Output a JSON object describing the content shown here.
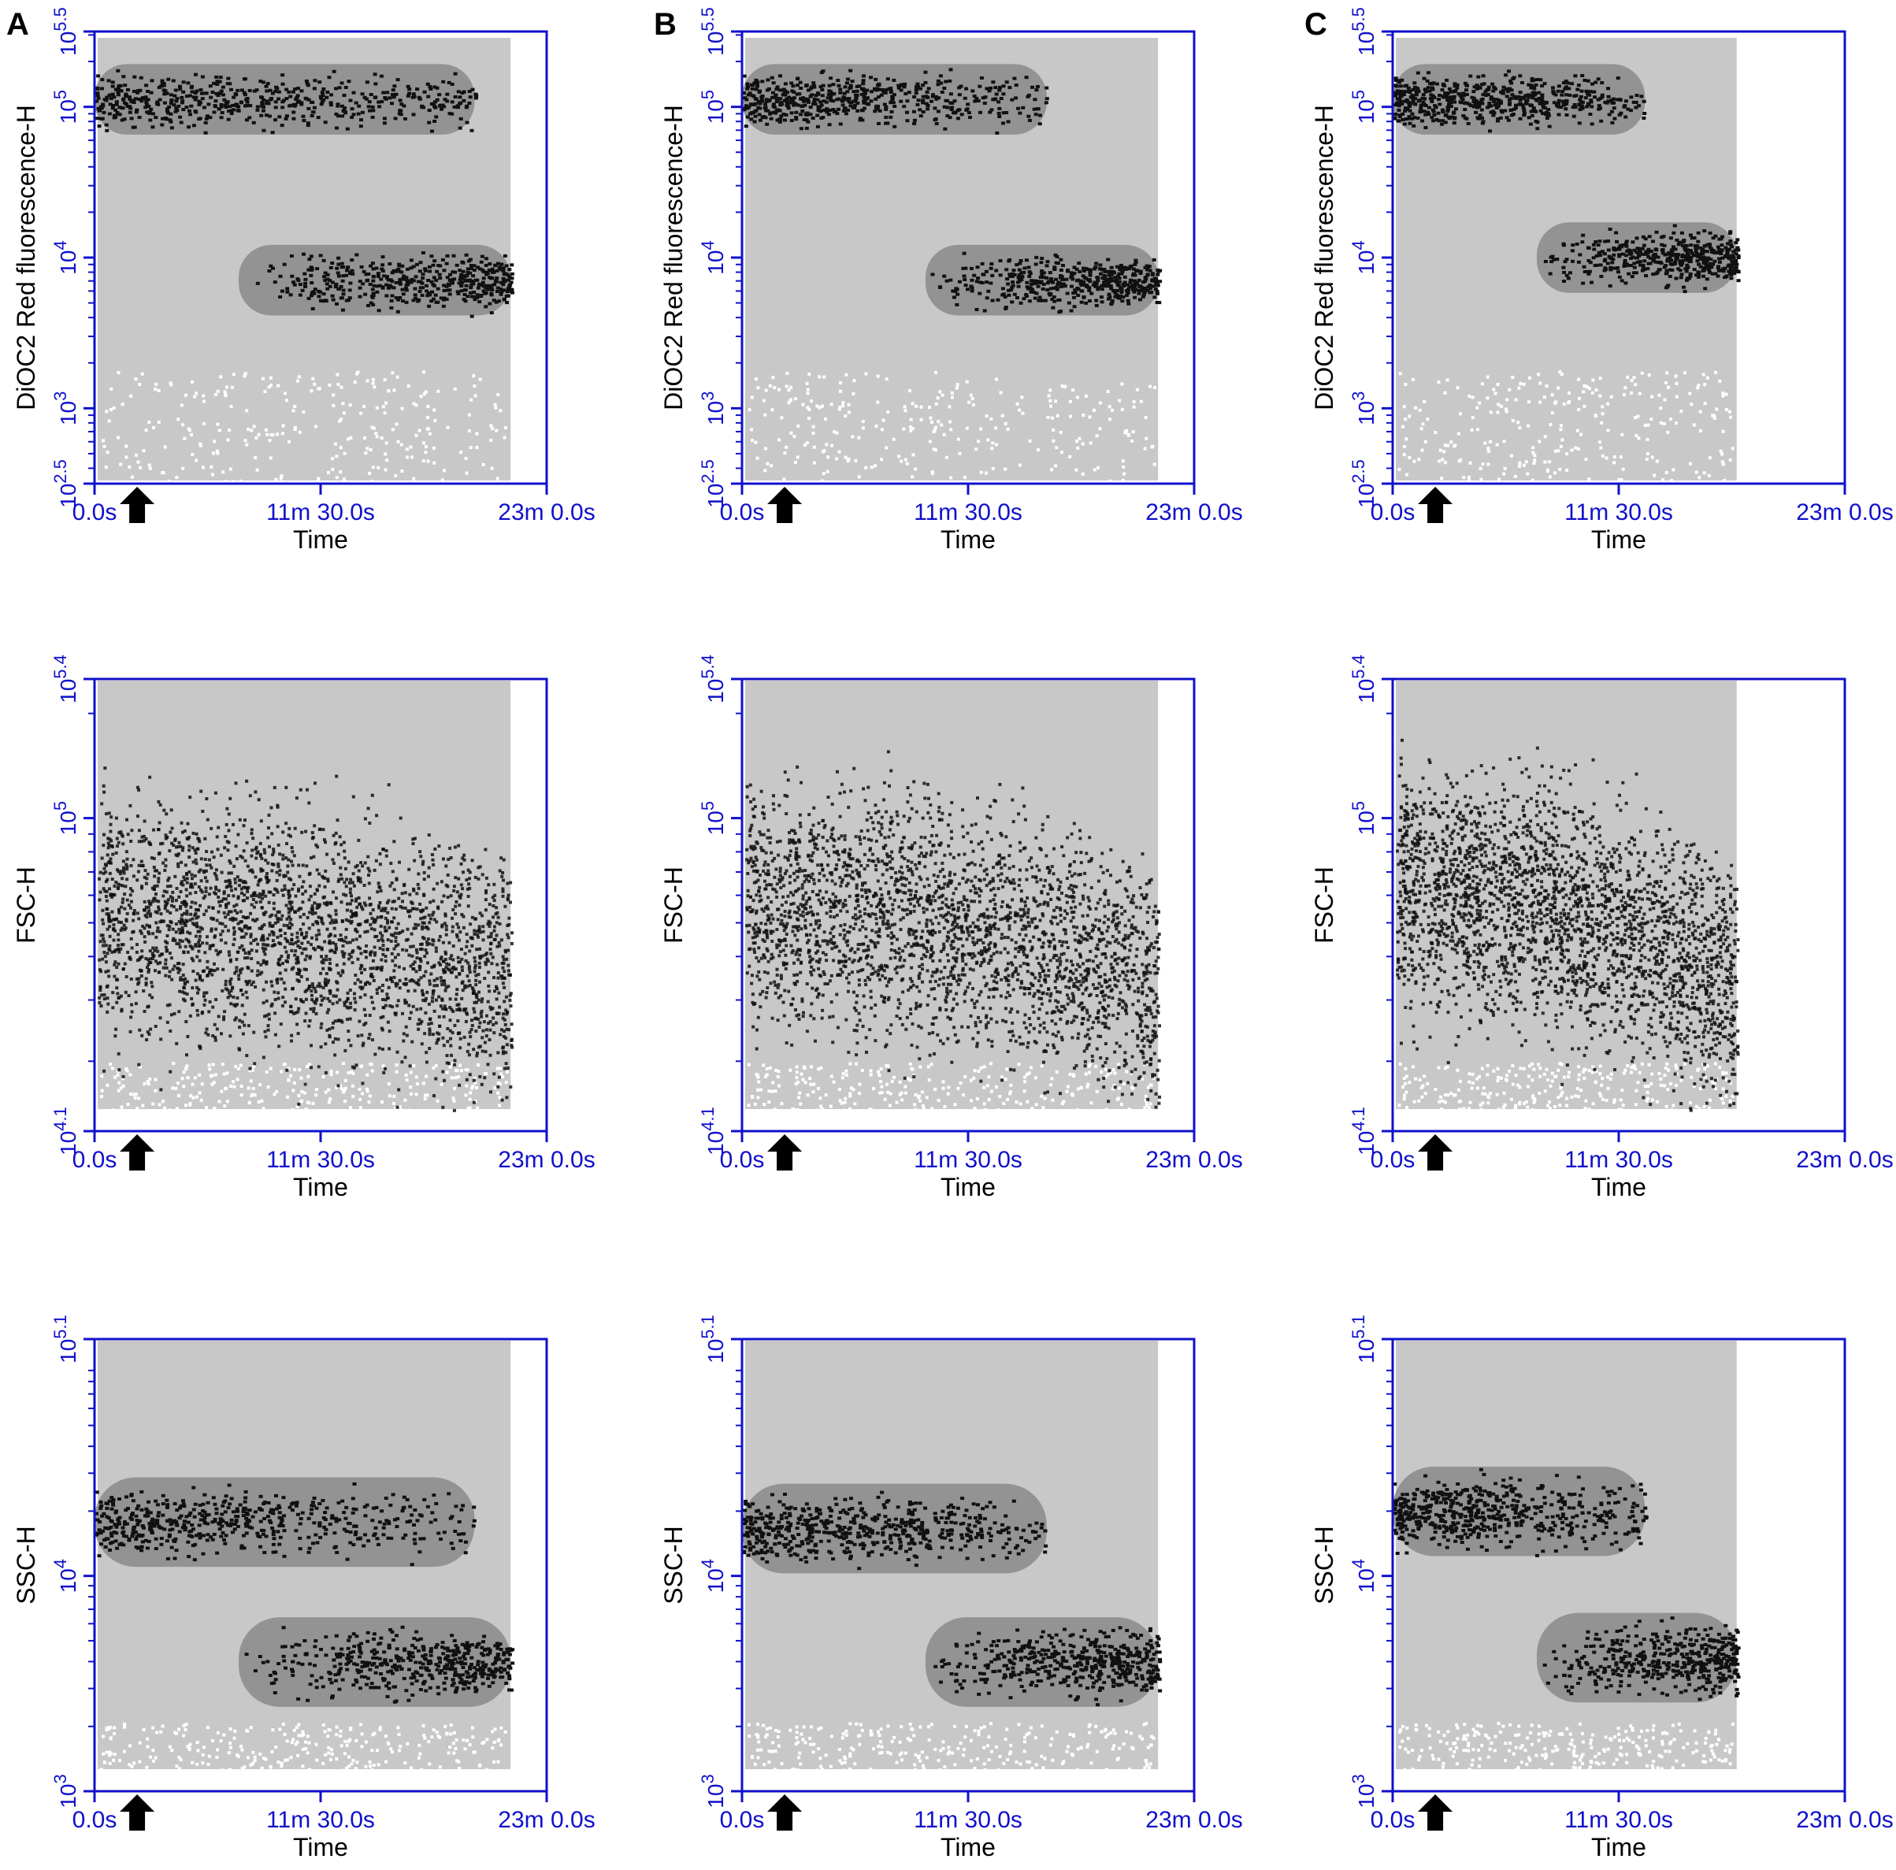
{
  "figure": {
    "panel_letters": [
      "A",
      "B",
      "C"
    ],
    "arrow_marker": "up-arrow-icon"
  },
  "colors": {
    "axis": "#1010cc",
    "background_density": "#c8c8c8",
    "low_density": "#ffffff",
    "mid_density": "#8a8a8a",
    "high_density": "#101010"
  },
  "chart_data": [
    {
      "type": "heatmap",
      "panel": "A",
      "xlabel": "Time",
      "ylabel": "DiOC2 Red fluorescence-H",
      "x_ticks": [
        "0.0s",
        "11m 30.0s",
        "23m 0.0s"
      ],
      "xlim_seconds": [
        0,
        1380
      ],
      "data_extent_seconds": [
        0,
        1270
      ],
      "y_scale": "log10",
      "ylim_log10": [
        2.5,
        5.5
      ],
      "y_ticks_log10": [
        2.5,
        3,
        4,
        5,
        5.5
      ],
      "arrow_time_seconds": 130,
      "populations": [
        {
          "t_start_s": 0,
          "t_end_s": 1160,
          "center_log10": 5.05,
          "intensity": "high then fading"
        },
        {
          "t_start_s": 440,
          "t_end_s": 1270,
          "center_log10": 3.85,
          "intensity": "rising"
        }
      ]
    },
    {
      "type": "heatmap",
      "panel": "B",
      "xlabel": "Time",
      "ylabel": "DiOC2 Red fluorescence-H",
      "x_ticks": [
        "0.0s",
        "11m 30.0s",
        "23m 0.0s"
      ],
      "xlim_seconds": [
        0,
        1380
      ],
      "data_extent_seconds": [
        0,
        1270
      ],
      "y_scale": "log10",
      "ylim_log10": [
        2.5,
        5.5
      ],
      "y_ticks_log10": [
        2.5,
        3,
        4,
        5,
        5.5
      ],
      "arrow_time_seconds": 130,
      "populations": [
        {
          "t_start_s": 0,
          "t_end_s": 930,
          "center_log10": 5.05,
          "intensity": "high then fading"
        },
        {
          "t_start_s": 560,
          "t_end_s": 1270,
          "center_log10": 3.85,
          "intensity": "rising"
        }
      ]
    },
    {
      "type": "heatmap",
      "panel": "C",
      "xlabel": "Time",
      "ylabel": "DiOC2 Red fluorescence-H",
      "x_ticks": [
        "0.0s",
        "11m 30.0s",
        "23m 0.0s"
      ],
      "xlim_seconds": [
        0,
        1380
      ],
      "data_extent_seconds": [
        0,
        1050
      ],
      "y_scale": "log10",
      "ylim_log10": [
        2.5,
        5.5
      ],
      "y_ticks_log10": [
        2.5,
        3,
        4,
        5,
        5.5
      ],
      "arrow_time_seconds": 130,
      "populations": [
        {
          "t_start_s": 0,
          "t_end_s": 770,
          "center_log10": 5.05,
          "intensity": "high then fading"
        },
        {
          "t_start_s": 440,
          "t_end_s": 1050,
          "center_log10": 4.0,
          "intensity": "rising"
        }
      ]
    },
    {
      "type": "heatmap",
      "panel": "A",
      "xlabel": "Time",
      "ylabel": "FSC-H",
      "x_ticks": [
        "0.0s",
        "11m 30.0s",
        "23m 0.0s"
      ],
      "xlim_seconds": [
        0,
        1380
      ],
      "data_extent_seconds": [
        0,
        1270
      ],
      "y_scale": "log10",
      "ylim_log10": [
        4.1,
        5.4
      ],
      "y_ticks_log10": [
        4.1,
        5,
        5.4
      ],
      "arrow_time_seconds": 130,
      "trend": {
        "start_center_log10": 4.72,
        "end_center_log10": 4.52
      }
    },
    {
      "type": "heatmap",
      "panel": "B",
      "xlabel": "Time",
      "ylabel": "FSC-H",
      "x_ticks": [
        "0.0s",
        "11m 30.0s",
        "23m 0.0s"
      ],
      "xlim_seconds": [
        0,
        1380
      ],
      "data_extent_seconds": [
        0,
        1270
      ],
      "y_scale": "log10",
      "ylim_log10": [
        4.1,
        5.4
      ],
      "y_ticks_log10": [
        4.1,
        5,
        5.4
      ],
      "arrow_time_seconds": 130,
      "trend": {
        "start_center_log10": 4.75,
        "end_center_log10": 4.5
      }
    },
    {
      "type": "heatmap",
      "panel": "C",
      "xlabel": "Time",
      "ylabel": "FSC-H",
      "x_ticks": [
        "0.0s",
        "11m 30.0s",
        "23m 0.0s"
      ],
      "xlim_seconds": [
        0,
        1380
      ],
      "data_extent_seconds": [
        0,
        1050
      ],
      "y_scale": "log10",
      "ylim_log10": [
        4.1,
        5.4
      ],
      "y_ticks_log10": [
        4.1,
        5,
        5.4
      ],
      "arrow_time_seconds": 130,
      "trend": {
        "start_center_log10": 4.8,
        "end_center_log10": 4.5
      }
    },
    {
      "type": "heatmap",
      "panel": "A",
      "xlabel": "Time",
      "ylabel": "SSC-H",
      "x_ticks": [
        "0.0s",
        "11m 30.0s",
        "23m 0.0s"
      ],
      "xlim_seconds": [
        0,
        1380
      ],
      "data_extent_seconds": [
        0,
        1270
      ],
      "y_scale": "log10",
      "ylim_log10": [
        3,
        5.1
      ],
      "y_ticks_log10": [
        3,
        4,
        5.1
      ],
      "arrow_time_seconds": 130,
      "populations": [
        {
          "t_start_s": 0,
          "t_end_s": 1160,
          "center_log10": 4.25,
          "intensity": "high then fading"
        },
        {
          "t_start_s": 440,
          "t_end_s": 1270,
          "center_log10": 3.6,
          "intensity": "rising"
        }
      ]
    },
    {
      "type": "heatmap",
      "panel": "B",
      "xlabel": "Time",
      "ylabel": "SSC-H",
      "x_ticks": [
        "0.0s",
        "11m 30.0s",
        "23m 0.0s"
      ],
      "xlim_seconds": [
        0,
        1380
      ],
      "data_extent_seconds": [
        0,
        1270
      ],
      "y_scale": "log10",
      "ylim_log10": [
        3,
        5.1
      ],
      "y_ticks_log10": [
        3,
        4,
        5.1
      ],
      "arrow_time_seconds": 130,
      "populations": [
        {
          "t_start_s": 0,
          "t_end_s": 930,
          "center_log10": 4.22,
          "intensity": "high then fading"
        },
        {
          "t_start_s": 560,
          "t_end_s": 1270,
          "center_log10": 3.6,
          "intensity": "rising"
        }
      ]
    },
    {
      "type": "heatmap",
      "panel": "C",
      "xlabel": "Time",
      "ylabel": "SSC-H",
      "x_ticks": [
        "0.0s",
        "11m 30.0s",
        "23m 0.0s"
      ],
      "xlim_seconds": [
        0,
        1380
      ],
      "data_extent_seconds": [
        0,
        1050
      ],
      "y_scale": "log10",
      "ylim_log10": [
        3,
        5.1
      ],
      "y_ticks_log10": [
        3,
        4,
        5.1
      ],
      "arrow_time_seconds": 130,
      "populations": [
        {
          "t_start_s": 0,
          "t_end_s": 770,
          "center_log10": 4.3,
          "intensity": "high then fading"
        },
        {
          "t_start_s": 440,
          "t_end_s": 1050,
          "center_log10": 3.62,
          "intensity": "rising"
        }
      ]
    }
  ]
}
